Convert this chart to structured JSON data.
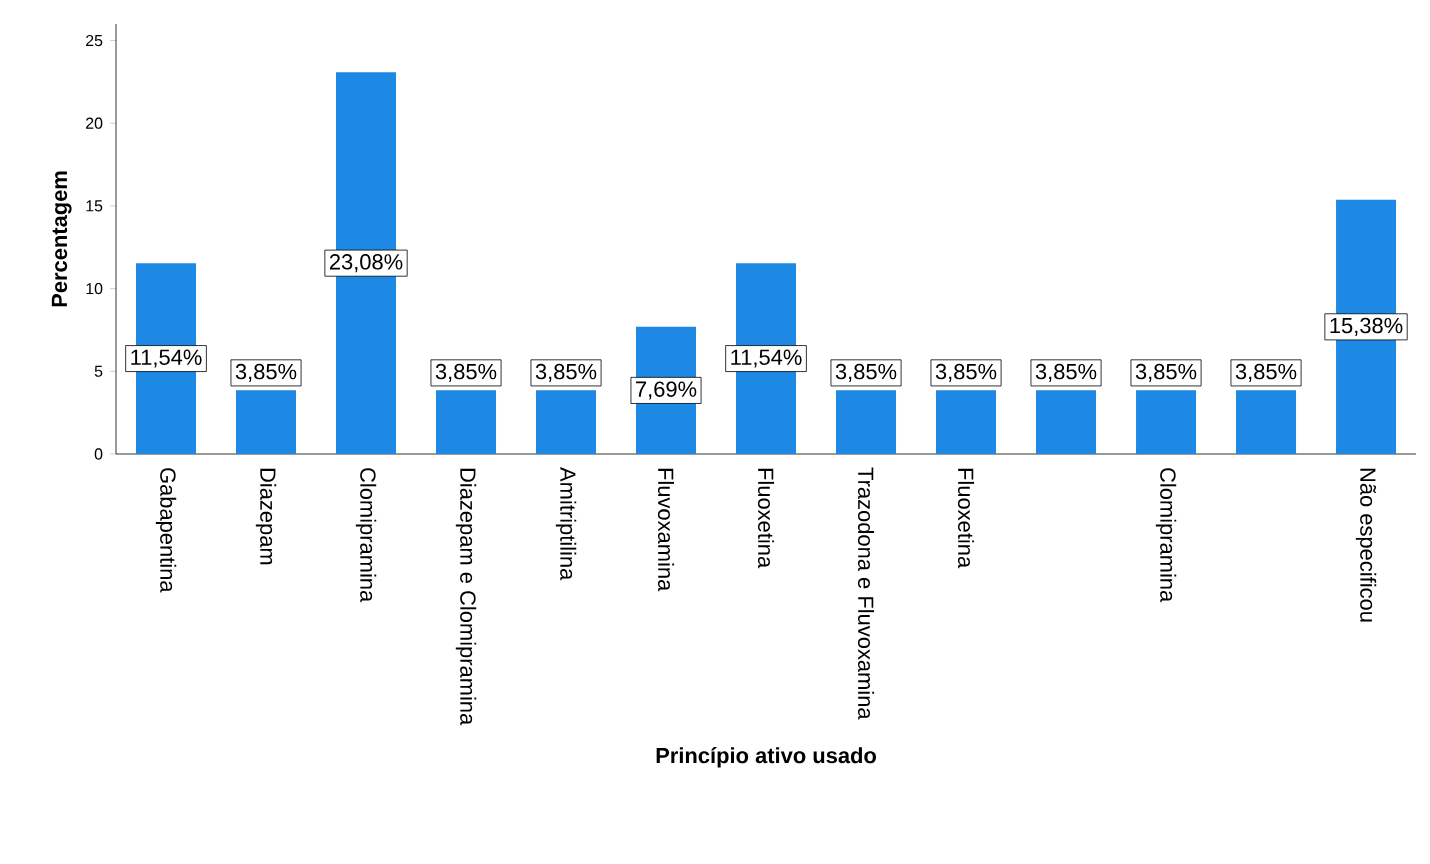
{
  "chart_data": {
    "type": "bar",
    "xlabel": "Princípio ativo usado",
    "ylabel": "Percentagem",
    "categories": [
      "Gabapentina",
      "Diazepam",
      "Clomipramina",
      "Diazepam e Clomipramina",
      "Amitriptilina",
      "Fluvoxamina",
      "Fluoxetina",
      "Trazodona e Fluvoxamina",
      "Fluoxetina",
      null,
      "Clomipramina",
      null,
      "Não especificou"
    ],
    "values": [
      11.54,
      3.85,
      23.08,
      3.85,
      3.85,
      7.69,
      11.54,
      3.85,
      3.85,
      3.85,
      3.85,
      3.85,
      15.38
    ],
    "value_labels": [
      "11,54%",
      "3,85%",
      "23,08%",
      "3,85%",
      "3,85%",
      "7,69%",
      "11,54%",
      "3,85%",
      "3,85%",
      "3,85%",
      "3,85%",
      "3,85%",
      "15,38%"
    ],
    "color": "#1e88e5",
    "ylim": [
      0,
      26
    ],
    "yticks": [
      0,
      5,
      10,
      15,
      20,
      25
    ],
    "grid": false
  }
}
